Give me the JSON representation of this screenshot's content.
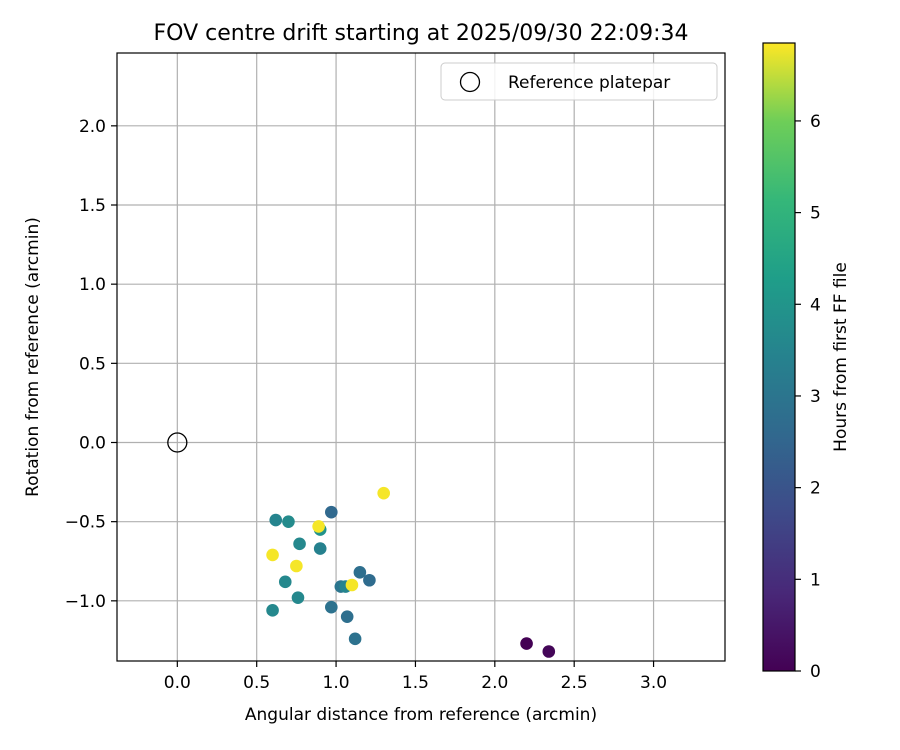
{
  "chart_data": {
    "type": "scatter",
    "title": "FOV centre drift starting at 2025/09/30 22:09:34",
    "xlabel": "Angular distance from reference (arcmin)",
    "ylabel": "Rotation from reference (arcmin)",
    "xlim": [
      -0.38,
      3.45
    ],
    "ylim": [
      -1.38,
      2.46
    ],
    "xticks": [
      0.0,
      0.5,
      1.0,
      1.5,
      2.0,
      2.5,
      3.0
    ],
    "yticks": [
      -1.0,
      -0.5,
      0.0,
      0.5,
      1.0,
      1.5,
      2.0
    ],
    "xtick_labels": [
      "0.0",
      "0.5",
      "1.0",
      "1.5",
      "2.0",
      "2.5",
      "3.0"
    ],
    "ytick_labels": [
      "−1.0",
      "−0.5",
      "0.0",
      "0.5",
      "1.0",
      "1.5",
      "2.0"
    ],
    "grid": true,
    "legend": {
      "placement": "top-right",
      "entries": [
        "Reference platepar"
      ]
    },
    "reference_point": {
      "name": "Reference platepar",
      "x": 0.0,
      "y": 0.0,
      "marker": "open-circle"
    },
    "colorbar": {
      "label": "Hours from first FF file",
      "colormap": "viridis",
      "range": [
        0,
        6.85
      ],
      "ticks": [
        0,
        1,
        2,
        3,
        4,
        5,
        6
      ],
      "tick_labels": [
        "0",
        "1",
        "2",
        "3",
        "4",
        "5",
        "6"
      ]
    },
    "points": [
      {
        "x": 2.2,
        "y": -1.27,
        "c": 0.0
      },
      {
        "x": 2.34,
        "y": -1.32,
        "c": 0.1
      },
      {
        "x": 0.97,
        "y": -0.44,
        "c": 2.6
      },
      {
        "x": 1.15,
        "y": -0.82,
        "c": 2.8
      },
      {
        "x": 1.21,
        "y": -0.87,
        "c": 2.7
      },
      {
        "x": 1.12,
        "y": -1.24,
        "c": 2.9
      },
      {
        "x": 1.07,
        "y": -1.1,
        "c": 2.8
      },
      {
        "x": 0.97,
        "y": -1.04,
        "c": 2.9
      },
      {
        "x": 1.03,
        "y": -0.91,
        "c": 3.0
      },
      {
        "x": 1.06,
        "y": -0.91,
        "c": 3.5
      },
      {
        "x": 0.62,
        "y": -0.49,
        "c": 3.5
      },
      {
        "x": 0.7,
        "y": -0.5,
        "c": 3.7
      },
      {
        "x": 0.9,
        "y": -0.55,
        "c": 3.9
      },
      {
        "x": 0.9,
        "y": -0.67,
        "c": 3.4
      },
      {
        "x": 0.77,
        "y": -0.64,
        "c": 3.6
      },
      {
        "x": 0.68,
        "y": -0.88,
        "c": 3.6
      },
      {
        "x": 0.76,
        "y": -0.98,
        "c": 3.6
      },
      {
        "x": 0.6,
        "y": -1.06,
        "c": 3.6
      },
      {
        "x": 1.3,
        "y": -0.32,
        "c": 6.8
      },
      {
        "x": 0.89,
        "y": -0.53,
        "c": 6.8
      },
      {
        "x": 0.6,
        "y": -0.71,
        "c": 6.8
      },
      {
        "x": 0.75,
        "y": -0.78,
        "c": 6.8
      },
      {
        "x": 1.1,
        "y": -0.9,
        "c": 6.8
      }
    ]
  }
}
